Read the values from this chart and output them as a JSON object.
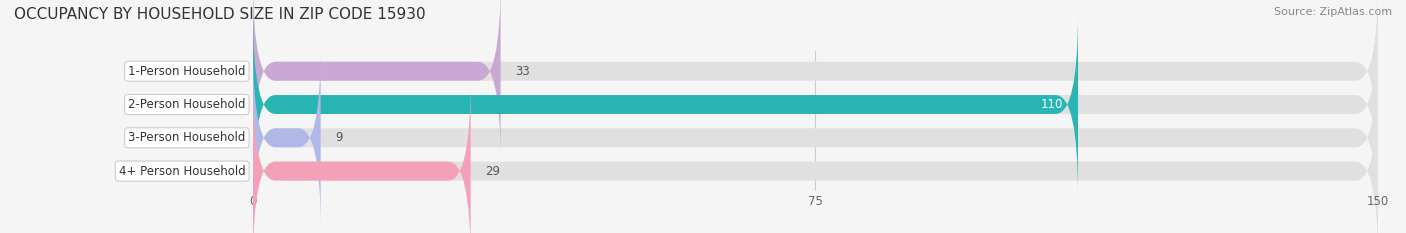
{
  "title": "OCCUPANCY BY HOUSEHOLD SIZE IN ZIP CODE 15930",
  "source": "Source: ZipAtlas.com",
  "categories": [
    "1-Person Household",
    "2-Person Household",
    "3-Person Household",
    "4+ Person Household"
  ],
  "values": [
    33,
    110,
    9,
    29
  ],
  "bar_colors": [
    "#c9a8d4",
    "#2ab5b5",
    "#b0b8e8",
    "#f4a0b8"
  ],
  "bar_edge_colors": [
    "#c9a8d4",
    "#2ab5b5",
    "#b0b8e8",
    "#f4a0b8"
  ],
  "background_color": "#f5f5f5",
  "bar_bg_color": "#e8e8e8",
  "xlim": [
    0,
    150
  ],
  "xticks": [
    0,
    75,
    150
  ],
  "figsize": [
    14.06,
    2.33
  ],
  "dpi": 100,
  "title_fontsize": 11,
  "label_fontsize": 8.5,
  "value_fontsize": 8.5,
  "source_fontsize": 8,
  "bar_height": 0.55
}
